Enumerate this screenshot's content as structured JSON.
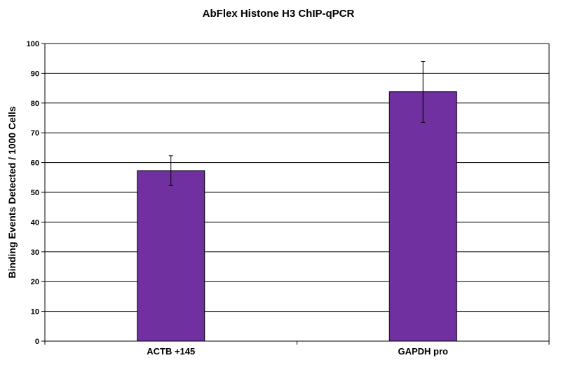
{
  "chart_data": {
    "type": "bar",
    "title": "AbFlex Histone H3 ChIP-qPCR",
    "xlabel": "",
    "ylabel": "Binding  Events Detected / 1000 Cells",
    "categories": [
      "ACTB +145",
      "GAPDH pro"
    ],
    "series": [
      {
        "values": [
          57.3,
          83.8
        ],
        "error_low": [
          52.3,
          73.5
        ],
        "error_high": [
          62.3,
          94.0
        ]
      }
    ],
    "ylim": [
      0,
      100
    ],
    "yticks": [
      "0",
      "10",
      "20",
      "30",
      "40",
      "50",
      "60",
      "70",
      "80",
      "90",
      "100"
    ],
    "grid": true,
    "legend": "none",
    "bar_color": "#7030A0",
    "bar_outline_color": "#000000",
    "gridline_color": "#000000"
  }
}
